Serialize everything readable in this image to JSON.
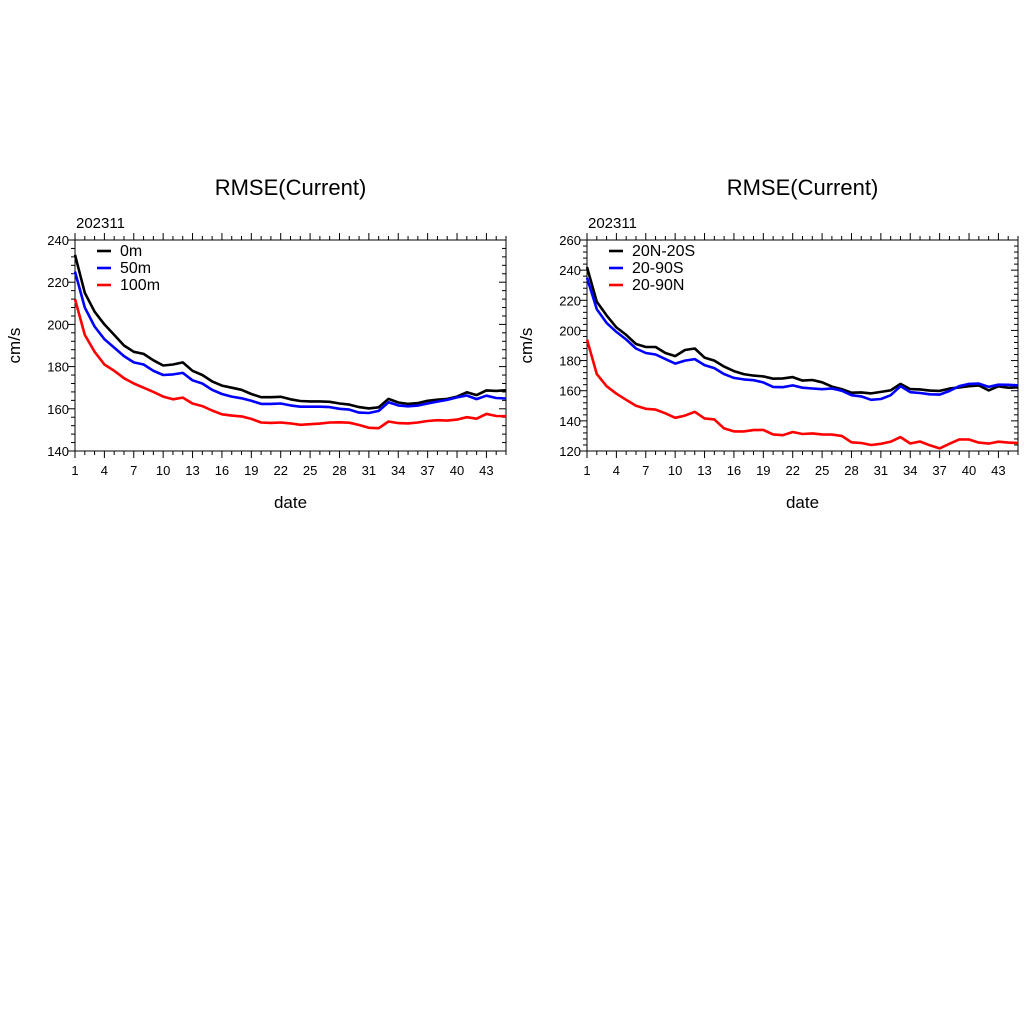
{
  "chart_data": [
    {
      "type": "line",
      "title": "RMSE(Current)",
      "subtitle": "202311",
      "xlabel": "date",
      "ylabel": "cm/s",
      "xlim": [
        1,
        45
      ],
      "ylim": [
        140,
        240
      ],
      "xticks": [
        1,
        4,
        7,
        10,
        13,
        16,
        19,
        22,
        25,
        28,
        31,
        34,
        37,
        40,
        43
      ],
      "yticks": [
        140,
        160,
        180,
        200,
        220,
        240
      ],
      "legend": "top-left",
      "grid": false,
      "series": [
        {
          "name": "0m",
          "color": "#000000",
          "values": [
            233,
            215,
            206,
            200,
            195,
            190,
            187,
            186,
            183,
            180.5,
            181,
            182,
            178,
            176,
            173,
            171,
            170,
            169,
            167,
            165.5,
            165.5,
            165.7,
            164.5,
            163.7,
            163.5,
            163.5,
            163.3,
            162.5,
            162,
            160.8,
            160.2,
            160.7,
            164.7,
            163,
            162.3,
            162.7,
            163.8,
            164.3,
            164.7,
            165.8,
            167.8,
            166.5,
            168.7,
            168.5,
            168.8
          ]
        },
        {
          "name": "50m",
          "color": "#0000ff",
          "values": [
            225,
            208,
            199,
            193,
            189,
            185,
            182,
            181,
            178,
            176,
            176.3,
            177,
            173.5,
            172,
            169,
            167,
            165.8,
            165,
            163.8,
            162.3,
            162.3,
            162.5,
            161.6,
            161,
            161,
            161,
            160.8,
            160,
            159.6,
            158.2,
            158,
            159,
            163.1,
            161.6,
            161.2,
            161.5,
            162.5,
            163.4,
            164.2,
            165.4,
            166.3,
            164.6,
            166.2,
            165.1,
            164.9
          ]
        },
        {
          "name": "100m",
          "color": "#ff0000",
          "values": [
            212,
            195,
            187,
            181,
            178,
            174.5,
            172,
            170,
            168,
            165.8,
            164.5,
            165.3,
            162.5,
            161.3,
            159.2,
            157.4,
            156.8,
            156.4,
            155.2,
            153.5,
            153.3,
            153.5,
            153.1,
            152.4,
            152.7,
            153,
            153.5,
            153.6,
            153.4,
            152.3,
            151,
            150.8,
            154,
            153.2,
            153.1,
            153.5,
            154.2,
            154.6,
            154.4,
            154.9,
            156,
            155.3,
            157.6,
            156.6,
            156.5
          ]
        }
      ]
    },
    {
      "type": "line",
      "title": "RMSE(Current)",
      "subtitle": "202311",
      "xlabel": "date",
      "ylabel": "cm/s",
      "xlim": [
        1,
        45
      ],
      "ylim": [
        120,
        260
      ],
      "xticks": [
        1,
        4,
        7,
        10,
        13,
        16,
        19,
        22,
        25,
        28,
        31,
        34,
        37,
        40,
        43
      ],
      "yticks": [
        120,
        140,
        160,
        180,
        200,
        220,
        240,
        260
      ],
      "legend": "top-left",
      "grid": false,
      "series": [
        {
          "name": "20N-20S",
          "color": "#000000",
          "values": [
            242,
            219,
            210,
            202,
            197,
            191,
            189,
            189,
            185,
            183,
            187,
            188,
            182,
            180,
            176,
            173,
            171,
            170,
            169.5,
            168,
            168.2,
            169,
            166.7,
            167.1,
            165.6,
            162.7,
            161.1,
            158.7,
            158.9,
            158.2,
            159.2,
            160.3,
            164.5,
            161.1,
            160.9,
            160.1,
            159.9,
            161.4,
            162.2,
            163,
            163.5,
            160.2,
            162.9,
            162,
            162.2
          ]
        },
        {
          "name": "20-90S",
          "color": "#0000ff",
          "values": [
            235,
            214,
            205,
            199,
            194,
            188,
            185,
            184,
            181,
            178,
            180,
            181,
            177,
            175,
            171,
            168.5,
            167.5,
            167,
            165.5,
            162.5,
            162.3,
            163.5,
            162,
            161.5,
            161,
            161.5,
            160,
            157,
            156.2,
            154,
            154.5,
            157,
            163,
            159,
            158.5,
            157.6,
            157.4,
            159.8,
            163,
            164.5,
            164.7,
            162.5,
            164,
            163.9,
            163.5
          ]
        },
        {
          "name": "20-90N",
          "color": "#ff0000",
          "values": [
            194,
            171,
            163,
            158,
            154,
            150,
            148,
            147.5,
            145,
            142,
            143.5,
            146,
            141.6,
            141,
            135,
            133,
            133,
            133.9,
            134,
            131,
            130.5,
            132.6,
            131.3,
            131.7,
            131,
            130.9,
            130,
            125.8,
            125.3,
            124,
            124.8,
            126.2,
            129.2,
            125,
            126.3,
            123.8,
            121.7,
            124.8,
            127.7,
            127.6,
            125.6,
            124.9,
            126.2,
            125.6,
            125.3
          ]
        }
      ]
    }
  ]
}
